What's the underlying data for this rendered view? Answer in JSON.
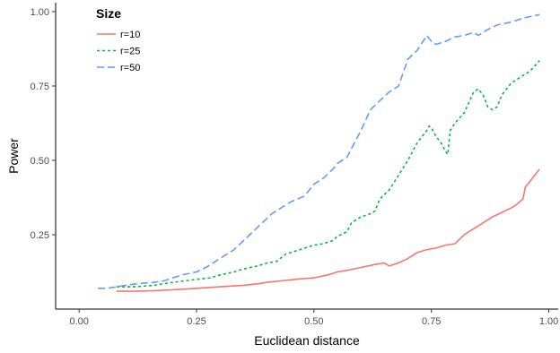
{
  "chart_data": {
    "type": "line",
    "xlabel": "Euclidean distance",
    "ylabel": "Power",
    "xlim": [
      -0.05,
      1.02
    ],
    "ylim": [
      0.0,
      1.03
    ],
    "x_ticks": [
      0.0,
      0.25,
      0.5,
      0.75,
      1.0
    ],
    "x_tick_labels": [
      "0.00",
      "0.25",
      "0.50",
      "0.75",
      "1.00"
    ],
    "y_ticks": [
      0.25,
      0.5,
      0.75,
      1.0
    ],
    "y_tick_labels": [
      "0.25",
      "0.50",
      "0.75",
      "1.00"
    ],
    "grid": false,
    "legend": {
      "title": "Size",
      "position": "top-left"
    },
    "series": [
      {
        "name": "r=10",
        "color": "#F8766D",
        "dash": "solid",
        "points": [
          [
            0.08,
            0.06
          ],
          [
            0.12,
            0.06
          ],
          [
            0.16,
            0.062
          ],
          [
            0.2,
            0.065
          ],
          [
            0.25,
            0.07
          ],
          [
            0.3,
            0.075
          ],
          [
            0.35,
            0.08
          ],
          [
            0.38,
            0.085
          ],
          [
            0.4,
            0.09
          ],
          [
            0.43,
            0.095
          ],
          [
            0.46,
            0.1
          ],
          [
            0.5,
            0.105
          ],
          [
            0.53,
            0.115
          ],
          [
            0.55,
            0.125
          ],
          [
            0.57,
            0.13
          ],
          [
            0.6,
            0.14
          ],
          [
            0.63,
            0.15
          ],
          [
            0.65,
            0.155
          ],
          [
            0.66,
            0.145
          ],
          [
            0.68,
            0.155
          ],
          [
            0.7,
            0.17
          ],
          [
            0.72,
            0.19
          ],
          [
            0.74,
            0.2
          ],
          [
            0.76,
            0.205
          ],
          [
            0.78,
            0.215
          ],
          [
            0.8,
            0.22
          ],
          [
            0.82,
            0.25
          ],
          [
            0.84,
            0.27
          ],
          [
            0.86,
            0.29
          ],
          [
            0.88,
            0.31
          ],
          [
            0.9,
            0.325
          ],
          [
            0.92,
            0.34
          ],
          [
            0.93,
            0.35
          ],
          [
            0.945,
            0.37
          ],
          [
            0.95,
            0.41
          ],
          [
            0.96,
            0.43
          ],
          [
            0.97,
            0.45
          ],
          [
            0.98,
            0.47
          ]
        ]
      },
      {
        "name": "r=25",
        "color": "#00BA38",
        "dash": "dotted",
        "points": [
          [
            0.08,
            0.075
          ],
          [
            0.12,
            0.075
          ],
          [
            0.16,
            0.08
          ],
          [
            0.2,
            0.09
          ],
          [
            0.25,
            0.1
          ],
          [
            0.28,
            0.105
          ],
          [
            0.3,
            0.115
          ],
          [
            0.33,
            0.125
          ],
          [
            0.35,
            0.135
          ],
          [
            0.38,
            0.145
          ],
          [
            0.4,
            0.155
          ],
          [
            0.42,
            0.16
          ],
          [
            0.44,
            0.185
          ],
          [
            0.46,
            0.195
          ],
          [
            0.48,
            0.205
          ],
          [
            0.5,
            0.215
          ],
          [
            0.52,
            0.22
          ],
          [
            0.54,
            0.23
          ],
          [
            0.55,
            0.245
          ],
          [
            0.57,
            0.26
          ],
          [
            0.58,
            0.29
          ],
          [
            0.6,
            0.31
          ],
          [
            0.62,
            0.32
          ],
          [
            0.63,
            0.33
          ],
          [
            0.64,
            0.37
          ],
          [
            0.66,
            0.4
          ],
          [
            0.68,
            0.45
          ],
          [
            0.7,
            0.5
          ],
          [
            0.72,
            0.56
          ],
          [
            0.74,
            0.6
          ],
          [
            0.745,
            0.615
          ],
          [
            0.75,
            0.61
          ],
          [
            0.76,
            0.58
          ],
          [
            0.77,
            0.56
          ],
          [
            0.78,
            0.53
          ],
          [
            0.785,
            0.52
          ],
          [
            0.79,
            0.6
          ],
          [
            0.8,
            0.625
          ],
          [
            0.82,
            0.66
          ],
          [
            0.84,
            0.73
          ],
          [
            0.85,
            0.74
          ],
          [
            0.86,
            0.72
          ],
          [
            0.87,
            0.68
          ],
          [
            0.88,
            0.67
          ],
          [
            0.89,
            0.68
          ],
          [
            0.9,
            0.72
          ],
          [
            0.92,
            0.76
          ],
          [
            0.94,
            0.78
          ],
          [
            0.96,
            0.8
          ],
          [
            0.98,
            0.835
          ]
        ]
      },
      {
        "name": "r=50",
        "color": "#619CFF",
        "dash": "dashed",
        "points": [
          [
            0.04,
            0.07
          ],
          [
            0.06,
            0.07
          ],
          [
            0.08,
            0.075
          ],
          [
            0.1,
            0.08
          ],
          [
            0.12,
            0.085
          ],
          [
            0.16,
            0.09
          ],
          [
            0.18,
            0.095
          ],
          [
            0.2,
            0.105
          ],
          [
            0.22,
            0.115
          ],
          [
            0.25,
            0.125
          ],
          [
            0.27,
            0.14
          ],
          [
            0.29,
            0.16
          ],
          [
            0.31,
            0.18
          ],
          [
            0.33,
            0.2
          ],
          [
            0.35,
            0.23
          ],
          [
            0.37,
            0.26
          ],
          [
            0.39,
            0.29
          ],
          [
            0.41,
            0.32
          ],
          [
            0.43,
            0.34
          ],
          [
            0.45,
            0.36
          ],
          [
            0.48,
            0.38
          ],
          [
            0.5,
            0.42
          ],
          [
            0.52,
            0.44
          ],
          [
            0.54,
            0.47
          ],
          [
            0.55,
            0.49
          ],
          [
            0.57,
            0.51
          ],
          [
            0.58,
            0.54
          ],
          [
            0.6,
            0.6
          ],
          [
            0.62,
            0.67
          ],
          [
            0.64,
            0.7
          ],
          [
            0.66,
            0.73
          ],
          [
            0.68,
            0.75
          ],
          [
            0.7,
            0.84
          ],
          [
            0.72,
            0.87
          ],
          [
            0.74,
            0.92
          ],
          [
            0.75,
            0.9
          ],
          [
            0.76,
            0.89
          ],
          [
            0.77,
            0.895
          ],
          [
            0.78,
            0.9
          ],
          [
            0.8,
            0.915
          ],
          [
            0.82,
            0.92
          ],
          [
            0.84,
            0.93
          ],
          [
            0.85,
            0.92
          ],
          [
            0.87,
            0.94
          ],
          [
            0.89,
            0.955
          ],
          [
            0.92,
            0.965
          ],
          [
            0.95,
            0.98
          ],
          [
            0.98,
            0.99
          ]
        ]
      }
    ]
  }
}
